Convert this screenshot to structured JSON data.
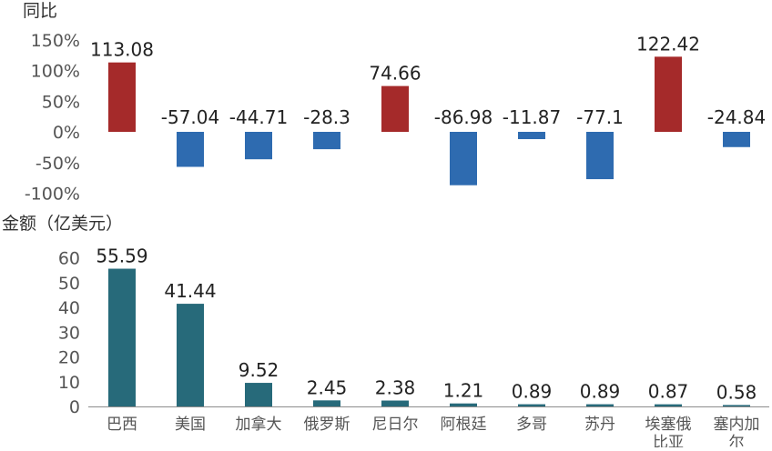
{
  "chart_data": [
    {
      "type": "bar",
      "ylabel": "同比",
      "categories": [
        "巴西",
        "美国",
        "加拿大",
        "俄罗斯",
        "尼日尔",
        "阿根廷",
        "多哥",
        "苏丹",
        "埃塞俄比亚",
        "塞内加尔"
      ],
      "values": [
        113.08,
        -57.04,
        -44.71,
        -28.3,
        74.66,
        -86.98,
        -11.87,
        -77.1,
        122.42,
        -24.84
      ],
      "value_labels": [
        "113.08",
        "-57.04",
        "-44.71",
        "-28.3",
        "74.66",
        "-86.98",
        "-11.87",
        "-77.1",
        "122.42",
        "-24.84"
      ],
      "ylim": [
        -100,
        150
      ],
      "yticks": [
        150,
        100,
        50,
        0,
        -50,
        -100
      ],
      "ytick_labels": [
        "150%",
        "100%",
        "50%",
        "0%",
        "-50%",
        "-100%"
      ],
      "positive_color": "#A52A2A",
      "negative_color": "#2E6BB0",
      "grid": false,
      "legend": "none"
    },
    {
      "type": "bar",
      "ylabel": "金额（亿美元）",
      "categories": [
        "巴西",
        "美国",
        "加拿大",
        "俄罗斯",
        "尼日尔",
        "阿根廷",
        "多哥",
        "苏丹",
        "埃塞俄比亚",
        "塞内加尔"
      ],
      "category_labels": [
        [
          "巴西"
        ],
        [
          "美国"
        ],
        [
          "加拿大"
        ],
        [
          "俄罗斯"
        ],
        [
          "尼日尔"
        ],
        [
          "阿根廷"
        ],
        [
          "多哥"
        ],
        [
          "苏丹"
        ],
        [
          "埃塞俄",
          "比亚"
        ],
        [
          "塞内加",
          "尔"
        ]
      ],
      "values": [
        55.59,
        41.44,
        9.52,
        2.45,
        2.38,
        1.21,
        0.89,
        0.89,
        0.87,
        0.58
      ],
      "value_labels": [
        "55.59",
        "41.44",
        "9.52",
        "2.45",
        "2.38",
        "1.21",
        "0.89",
        "0.89",
        "0.87",
        "0.58"
      ],
      "ylim": [
        0,
        60
      ],
      "yticks": [
        60,
        50,
        40,
        30,
        20,
        10,
        0
      ],
      "ytick_labels": [
        "60",
        "50",
        "40",
        "30",
        "20",
        "10",
        "0"
      ],
      "color": "#276A7A",
      "grid": false,
      "legend": "none"
    }
  ]
}
